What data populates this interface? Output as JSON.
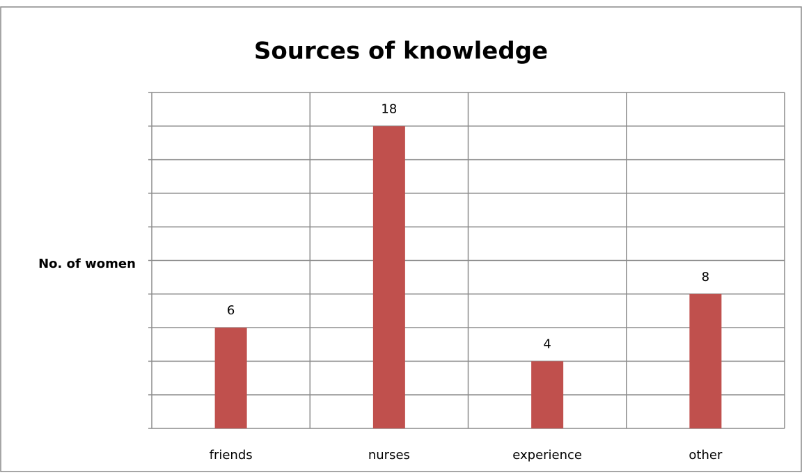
{
  "chart_data": {
    "type": "bar",
    "title": "Sources of knowledge",
    "y_label": "No. of women",
    "categories": [
      "friends",
      "nurses",
      "experience",
      "other"
    ],
    "values": [
      6,
      18,
      4,
      8
    ],
    "color": "#c0504d",
    "ylim": [
      0,
      20
    ],
    "yticks": [
      0,
      2,
      4,
      6,
      8,
      10,
      12,
      14,
      16,
      18,
      20
    ],
    "grid": true
  }
}
